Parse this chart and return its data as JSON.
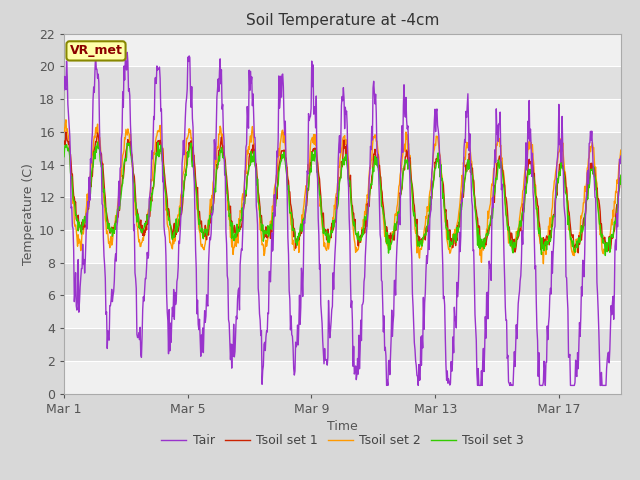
{
  "title": "Soil Temperature at -4cm",
  "xlabel": "Time",
  "ylabel": "Temperature (C)",
  "ylim": [
    0,
    22
  ],
  "yticks": [
    0,
    2,
    4,
    6,
    8,
    10,
    12,
    14,
    16,
    18,
    20,
    22
  ],
  "xtick_labels": [
    "Mar 1",
    "Mar 5",
    "Mar 9",
    "Mar 13",
    "Mar 17"
  ],
  "xtick_positions": [
    0,
    4,
    8,
    12,
    16
  ],
  "annotation": "VR_met",
  "colors": {
    "Tair": "#9933cc",
    "Tsoil1": "#cc2200",
    "Tsoil2": "#ff9900",
    "Tsoil3": "#33cc00"
  },
  "legend_labels": [
    "Tair",
    "Tsoil set 1",
    "Tsoil set 2",
    "Tsoil set 3"
  ],
  "bg_color": "#d8d8d8",
  "band_light": "#f0f0f0",
  "band_dark": "#e0e0e0",
  "n_days": 18,
  "pts_per_day": 48,
  "figsize": [
    6.4,
    4.8
  ],
  "dpi": 100
}
